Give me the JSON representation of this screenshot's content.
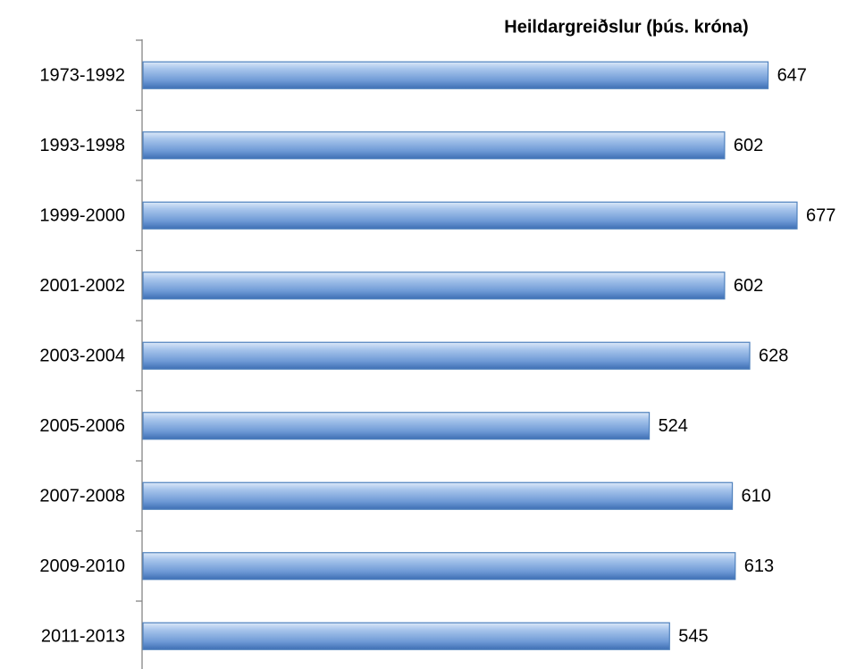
{
  "chart_data": {
    "type": "barh",
    "title": "Heildargreiðslur (þús. króna)",
    "categories": [
      "1973-1992",
      "1993-1998",
      "1999-2000",
      "2001-2002",
      "2003-2004",
      "2005-2006",
      "2007-2008",
      "2009-2010",
      "2011-2013"
    ],
    "values": [
      647,
      602,
      677,
      602,
      628,
      524,
      610,
      613,
      545
    ],
    "color": "#4f81bd"
  }
}
